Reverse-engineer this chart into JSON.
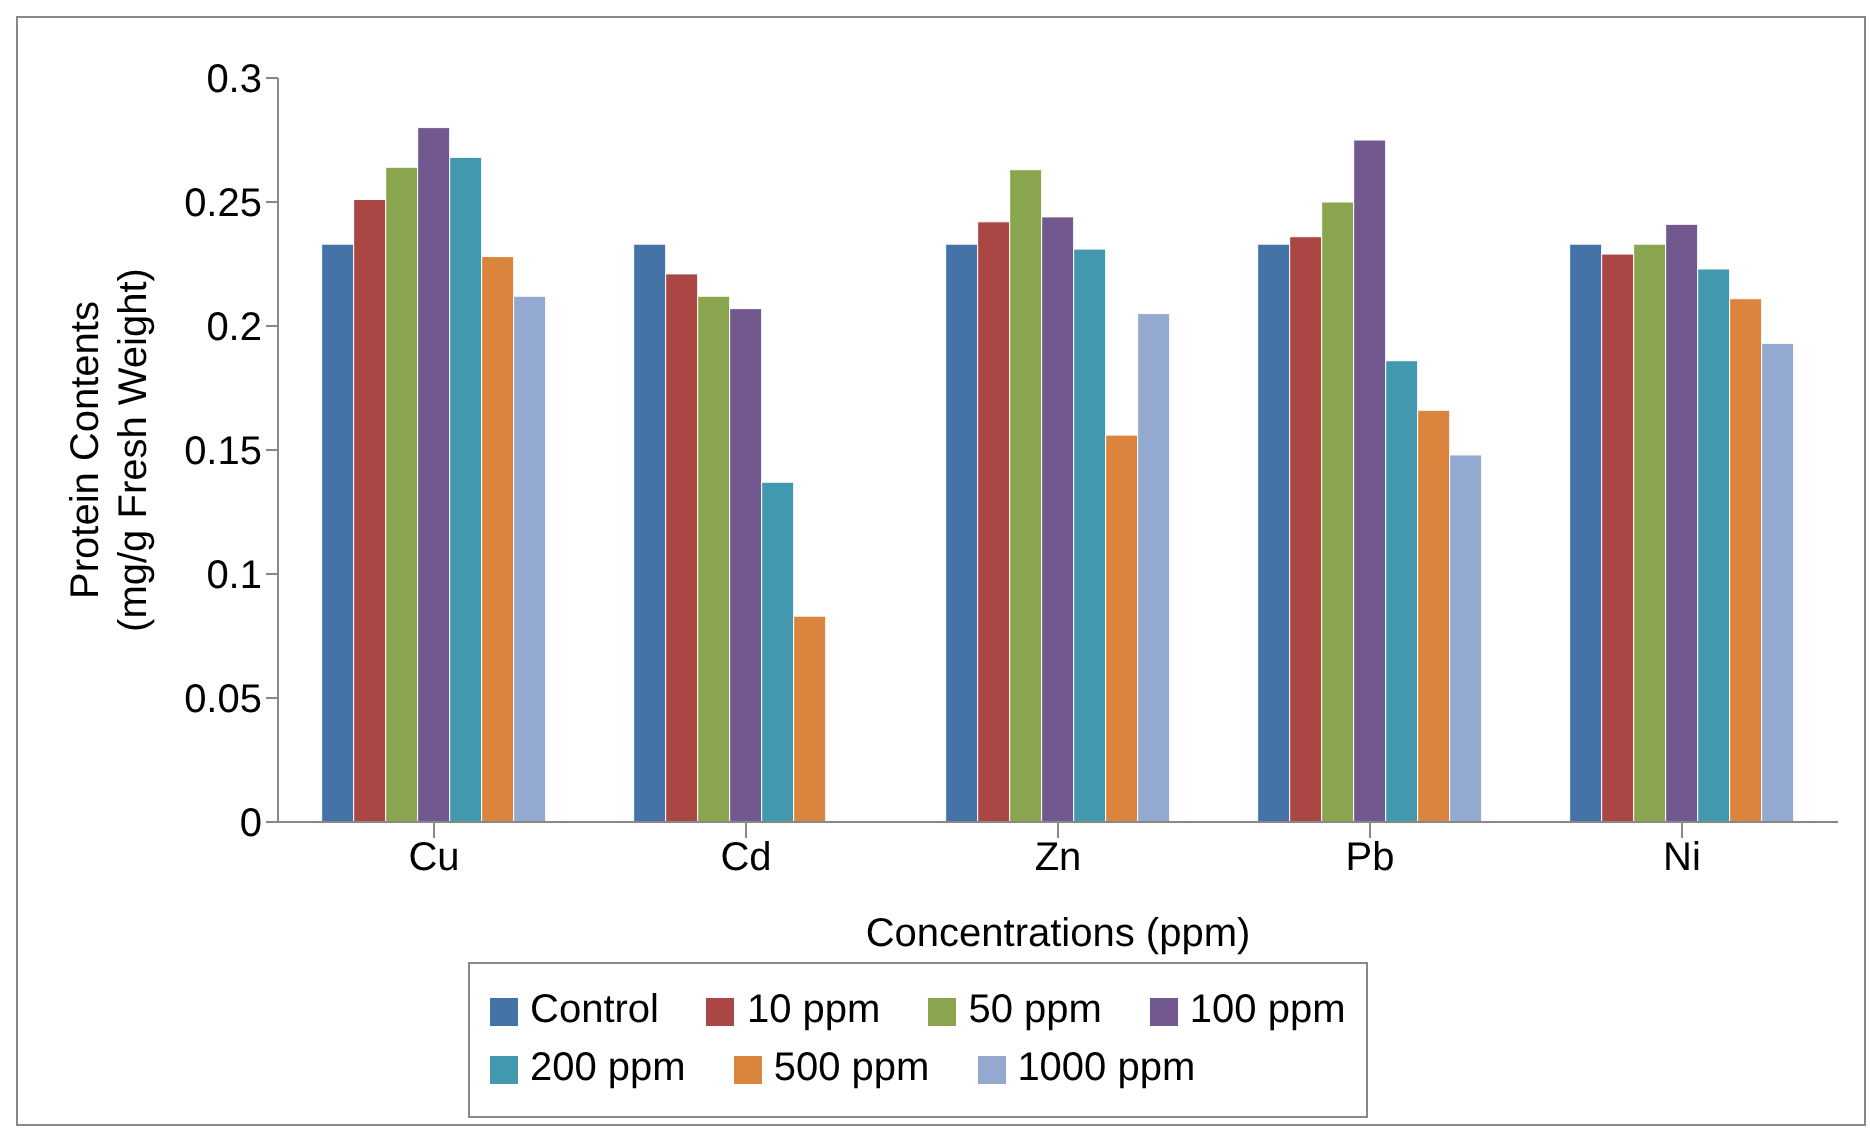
{
  "chart_data": {
    "type": "bar",
    "xlabel": "Concentrations (ppm)",
    "ylabel": "Protein Contents\n(mg/g Fresh Weight)",
    "categories": [
      "Cu",
      "Cd",
      "Zn",
      "Pb",
      "Ni"
    ],
    "series": [
      {
        "name": "Control",
        "color": "#4572a7",
        "values": [
          0.233,
          0.233,
          0.233,
          0.233,
          0.233
        ]
      },
      {
        "name": "10 ppm",
        "color": "#aa4643",
        "values": [
          0.251,
          0.221,
          0.242,
          0.236,
          0.229
        ]
      },
      {
        "name": "50 ppm",
        "color": "#89a54e",
        "values": [
          0.264,
          0.212,
          0.263,
          0.25,
          0.233
        ]
      },
      {
        "name": "100 ppm",
        "color": "#71588f",
        "values": [
          0.28,
          0.207,
          0.244,
          0.275,
          0.241
        ]
      },
      {
        "name": "200 ppm",
        "color": "#4198af",
        "values": [
          0.268,
          0.137,
          0.231,
          0.186,
          0.223
        ]
      },
      {
        "name": "500 ppm",
        "color": "#db843d",
        "values": [
          0.228,
          0.083,
          0.156,
          0.166,
          0.211
        ]
      },
      {
        "name": "1000 ppm",
        "color": "#93a9cf",
        "values": [
          0.212,
          null,
          0.205,
          0.148,
          0.193
        ]
      }
    ],
    "ylim": [
      0,
      0.3
    ],
    "yticks": [
      0,
      0.05,
      0.1,
      0.15,
      0.2,
      0.25,
      0.3
    ],
    "grid": false,
    "legend": "bottom"
  }
}
